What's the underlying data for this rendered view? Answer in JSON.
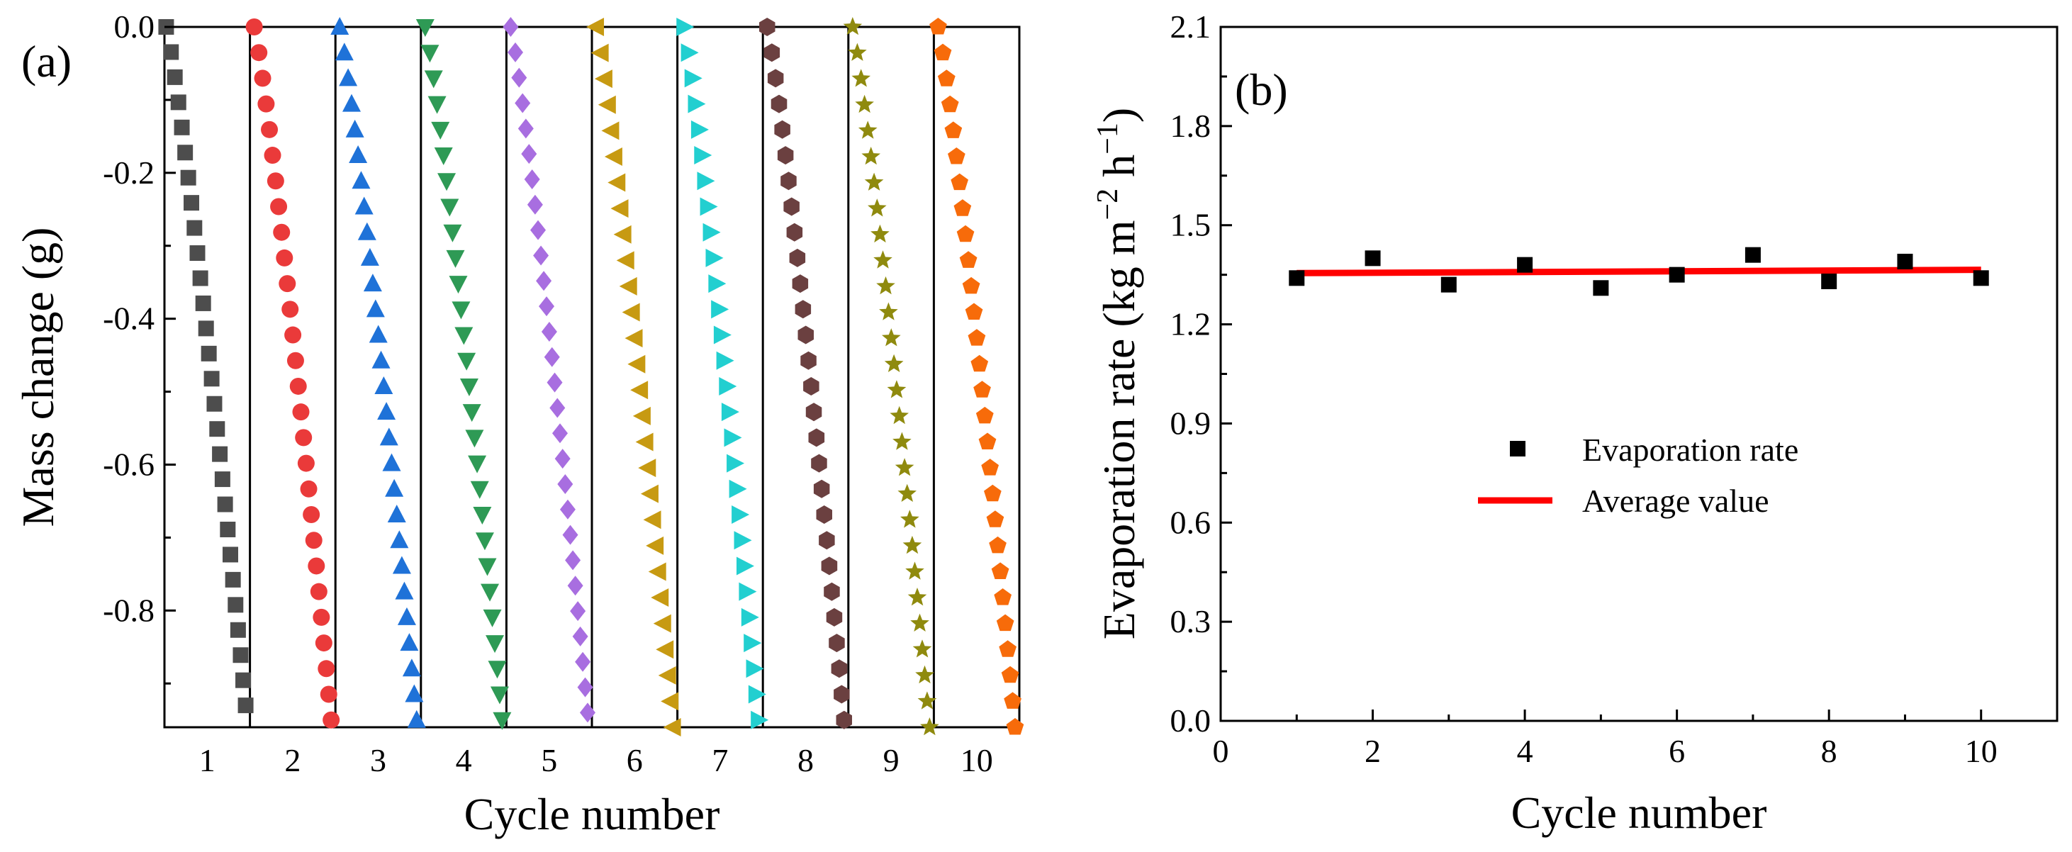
{
  "chart_data": [
    {
      "panel": "(a)",
      "type": "scatter",
      "xlabel": "Cycle number",
      "ylabel": "Mass change (g)",
      "ylim": [
        -0.96,
        0.0
      ],
      "yticks": [
        "0.0",
        "-0.2",
        "-0.4",
        "-0.6",
        "-0.8"
      ],
      "ytick_values": [
        0.0,
        -0.2,
        -0.4,
        -0.6,
        -0.8
      ],
      "cycle_labels": [
        "1",
        "2",
        "3",
        "4",
        "5",
        "6",
        "7",
        "8",
        "9",
        "10"
      ],
      "series": [
        {
          "name": "1",
          "marker": "square",
          "color": "#4d4d4d",
          "points": 28,
          "start_offset": 0.02,
          "end_offset": 0.95,
          "final_mass": -0.93
        },
        {
          "name": "2",
          "marker": "circle",
          "color": "#ea3a3a",
          "points": 28,
          "start_offset": 0.05,
          "end_offset": 0.95,
          "final_mass": -0.95
        },
        {
          "name": "3",
          "marker": "triangle-up",
          "color": "#1f72d8",
          "points": 28,
          "start_offset": 0.05,
          "end_offset": 0.95,
          "final_mass": -0.95
        },
        {
          "name": "4",
          "marker": "triangle-down",
          "color": "#2e9a55",
          "points": 28,
          "start_offset": 0.05,
          "end_offset": 0.95,
          "final_mass": -0.95
        },
        {
          "name": "5",
          "marker": "diamond",
          "color": "#a86ee0",
          "points": 28,
          "start_offset": 0.05,
          "end_offset": 0.95,
          "final_mass": -0.94
        },
        {
          "name": "6",
          "marker": "triangle-left",
          "color": "#c79a12",
          "points": 28,
          "start_offset": 0.05,
          "end_offset": 0.95,
          "final_mass": -0.96
        },
        {
          "name": "7",
          "marker": "triangle-right",
          "color": "#22cfd0",
          "points": 28,
          "start_offset": 0.08,
          "end_offset": 0.95,
          "final_mass": -0.95
        },
        {
          "name": "8",
          "marker": "hexagon",
          "color": "#6b4040",
          "points": 28,
          "start_offset": 0.05,
          "end_offset": 0.95,
          "final_mass": -0.95
        },
        {
          "name": "9",
          "marker": "star",
          "color": "#8f8a0e",
          "points": 28,
          "start_offset": 0.05,
          "end_offset": 0.95,
          "final_mass": -0.96
        },
        {
          "name": "10",
          "marker": "pentagon",
          "color": "#f76b0a",
          "points": 28,
          "start_offset": 0.05,
          "end_offset": 0.95,
          "final_mass": -0.96
        }
      ]
    },
    {
      "panel": "(b)",
      "type": "scatter",
      "xlabel": "Cycle number",
      "ylabel": "Evaporation rate (kg m",
      "ylabel_sup1": "−2",
      "ylabel_mid": " h",
      "ylabel_sup2": "−1",
      "ylabel_end": ")",
      "xlim": [
        0,
        11
      ],
      "ylim": [
        0.0,
        2.1
      ],
      "xticks": [
        "0",
        "2",
        "4",
        "6",
        "8",
        "10"
      ],
      "xtick_values": [
        0,
        2,
        4,
        6,
        8,
        10
      ],
      "yticks": [
        "0.0",
        "0.3",
        "0.6",
        "0.9",
        "1.2",
        "1.5",
        "1.8",
        "2.1"
      ],
      "ytick_values": [
        0.0,
        0.3,
        0.6,
        0.9,
        1.2,
        1.5,
        1.8,
        2.1
      ],
      "x": [
        1,
        2,
        3,
        4,
        5,
        6,
        7,
        8,
        9,
        10
      ],
      "y": [
        1.34,
        1.4,
        1.32,
        1.38,
        1.31,
        1.35,
        1.41,
        1.33,
        1.39,
        1.34
      ],
      "average_line": {
        "x": [
          1,
          10
        ],
        "y": [
          1.355,
          1.365
        ]
      },
      "point_color": "#000000",
      "line_color": "#ff0000",
      "legend": [
        {
          "label": "Evaporation rate",
          "kind": "marker"
        },
        {
          "label": "Average value",
          "kind": "line"
        }
      ],
      "legend_position": "center-right"
    }
  ]
}
